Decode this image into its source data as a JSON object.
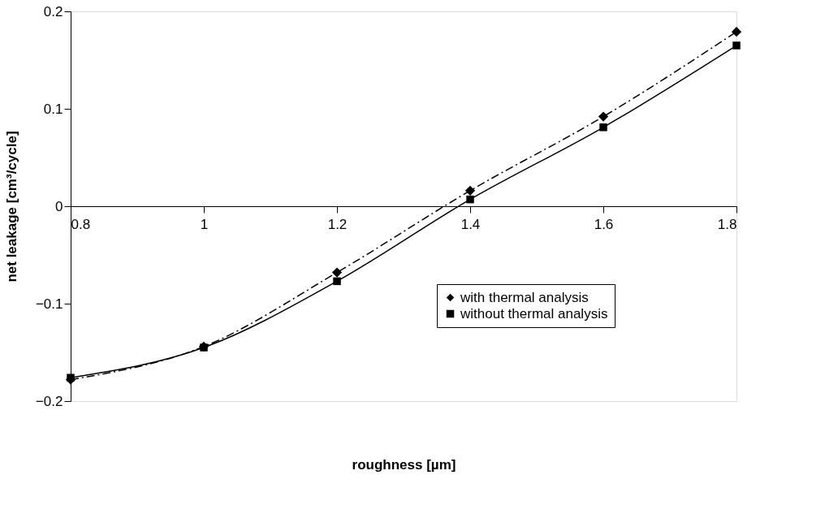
{
  "chart_data": {
    "type": "line",
    "xlabel": "roughness [µm]",
    "ylabel": "net leakage [cm³/cycle]",
    "x": [
      0.8,
      1.0,
      1.2,
      1.4,
      1.6,
      1.8
    ],
    "series": [
      {
        "name": "with thermal analysis",
        "color": "#000000",
        "marker": "diamond",
        "line_style": "dashdot",
        "values": [
          -0.178,
          -0.144,
          -0.068,
          0.016,
          0.092,
          0.179
        ]
      },
      {
        "name": "without thermal analysis",
        "color": "#000000",
        "marker": "square",
        "line_style": "solid",
        "values": [
          -0.176,
          -0.145,
          -0.077,
          0.007,
          0.081,
          0.165
        ]
      }
    ],
    "xlim": [
      0.8,
      1.8
    ],
    "xticks": [
      0.8,
      1,
      1.2,
      1.4,
      1.6,
      1.8
    ],
    "ylim": [
      -0.2,
      0.2
    ],
    "yticks": [
      -0.2,
      -0.1,
      0,
      0.1,
      0.2
    ],
    "grid": false,
    "legend": "bottom right"
  }
}
